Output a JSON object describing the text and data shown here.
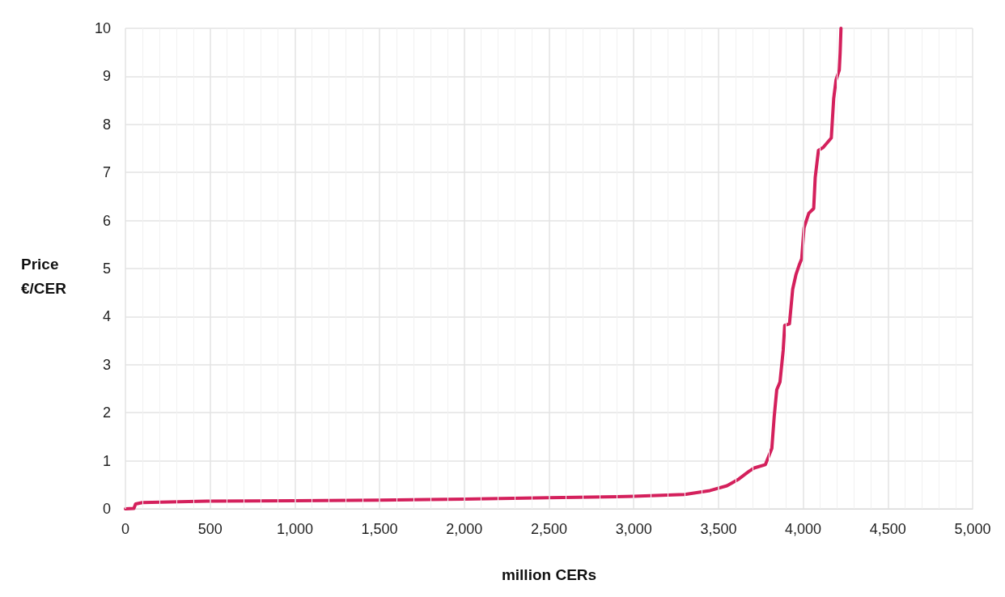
{
  "chart_data": {
    "type": "line",
    "xlabel": "million CERs",
    "ylabel": "Price\n€/CER",
    "x": [
      0,
      50,
      60,
      100,
      500,
      1000,
      1500,
      2000,
      2500,
      3000,
      3300,
      3450,
      3550,
      3620,
      3680,
      3711,
      3777,
      3815,
      3829,
      3844,
      3863,
      3882,
      3891,
      3919,
      3938,
      3957,
      3976,
      3991,
      4005,
      4033,
      4062,
      4071,
      4090,
      4118,
      4166,
      4180,
      4194,
      4213,
      4218,
      4223
    ],
    "series": [
      {
        "color": "#d4205c",
        "values": [
          0,
          0.01,
          0.1,
          0.13,
          0.16,
          0.17,
          0.18,
          0.2,
          0.23,
          0.26,
          0.3,
          0.38,
          0.48,
          0.62,
          0.78,
          0.85,
          0.92,
          1.26,
          1.92,
          2.48,
          2.64,
          3.3,
          3.82,
          3.85,
          4.57,
          4.87,
          5.07,
          5.2,
          5.85,
          6.15,
          6.25,
          6.9,
          7.46,
          7.52,
          7.72,
          8.54,
          8.93,
          9.13,
          9.49,
          10
        ]
      }
    ],
    "xlim": [
      0,
      5000
    ],
    "xticks": [
      {
        "value": 0,
        "label": "0"
      },
      {
        "value": 500,
        "label": "500"
      },
      {
        "value": 1000,
        "label": "1,000"
      },
      {
        "value": 1500,
        "label": "1,500"
      },
      {
        "value": 2000,
        "label": "2,000"
      },
      {
        "value": 2500,
        "label": "2,500"
      },
      {
        "value": 3000,
        "label": "3,000"
      },
      {
        "value": 3500,
        "label": "3,500"
      },
      {
        "value": 4000,
        "label": "4,000"
      },
      {
        "value": 4500,
        "label": "4,500"
      },
      {
        "value": 5000,
        "label": "5,000"
      }
    ],
    "ylim": [
      0,
      10
    ],
    "yticks": [
      0,
      1,
      2,
      3,
      4,
      5,
      6,
      7,
      8,
      9,
      10
    ],
    "grid": true,
    "marker": "none",
    "line_style": "solid"
  }
}
